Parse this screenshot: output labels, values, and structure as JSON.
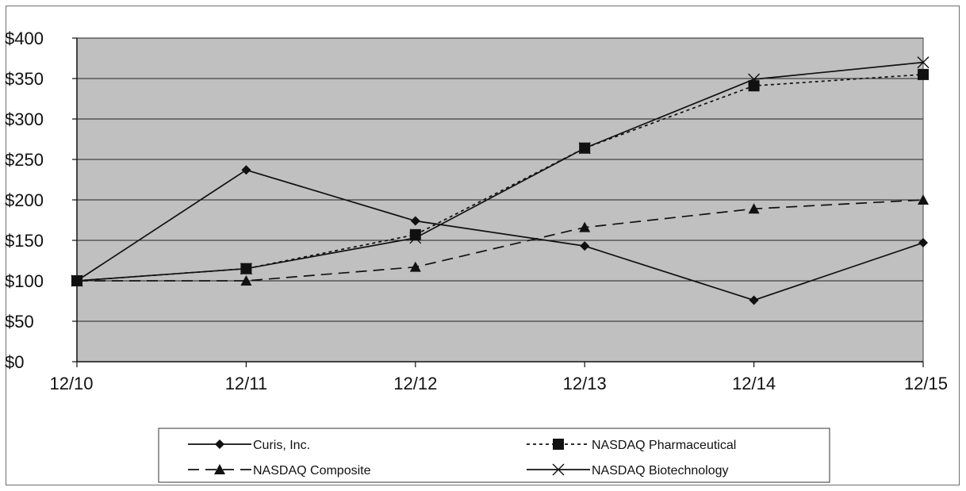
{
  "chart_data": {
    "type": "line",
    "x": [
      "12/10",
      "12/11",
      "12/12",
      "12/13",
      "12/14",
      "12/15"
    ],
    "ylim": [
      0,
      400
    ],
    "yticks": [
      0,
      50,
      100,
      150,
      200,
      250,
      300,
      350,
      400
    ],
    "ytick_labels": [
      "$0",
      "$50",
      "$100",
      "$150",
      "$200",
      "$250",
      "$300",
      "$350",
      "$400"
    ],
    "grid": true,
    "plot_background": "#c0c0c0",
    "legend_position": "bottom",
    "series": [
      {
        "name": "Curis, Inc.",
        "values": [
          100,
          237,
          174,
          143,
          76,
          147
        ],
        "marker": "diamond",
        "dash": "solid"
      },
      {
        "name": "NASDAQ Pharmaceutical",
        "values": [
          100,
          115,
          157,
          264,
          341,
          355
        ],
        "marker": "square",
        "dash": "dotted"
      },
      {
        "name": "NASDAQ Composite",
        "values": [
          100,
          100,
          117,
          166,
          189,
          200
        ],
        "marker": "triangle",
        "dash": "dashed"
      },
      {
        "name": "NASDAQ Biotechnology",
        "values": [
          100,
          115,
          153,
          264,
          349,
          370
        ],
        "marker": "x",
        "dash": "solid"
      }
    ]
  }
}
